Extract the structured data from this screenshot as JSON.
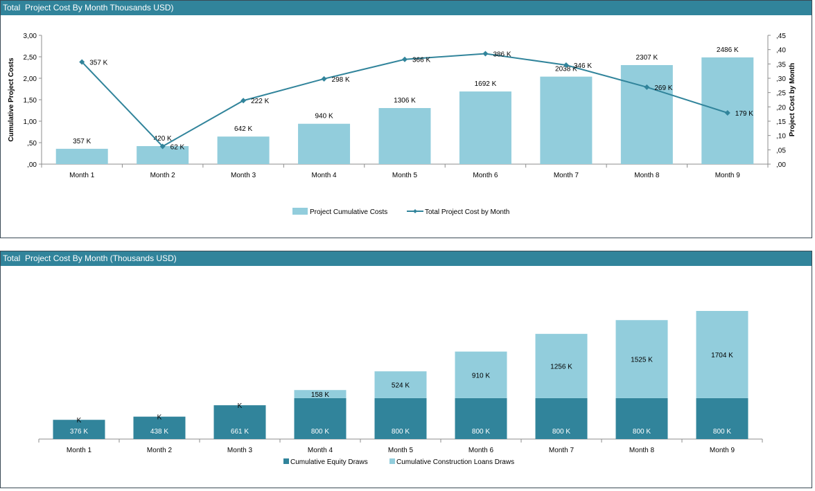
{
  "charts": {
    "top": {
      "header_title": "Total  Project Cost By Month Thousands USD)"
    },
    "bottom": {
      "header_title": "Total  Project Cost By Month (Thousands USD)"
    }
  },
  "colors": {
    "header": "#31849b",
    "cumulative_bar": "#92cddc",
    "line": "#31849b",
    "equity": "#31849b",
    "loans": "#92cddc"
  },
  "chart_data": [
    {
      "type": "bar",
      "categories": [
        "Month 1",
        "Month 2",
        "Month 3",
        "Month 4",
        "Month 5",
        "Month 6",
        "Month 7",
        "Month 8",
        "Month 9"
      ],
      "series": [
        {
          "name": "Project Cumulative Costs",
          "type": "bar",
          "axis": "left",
          "values": [
            357,
            420,
            642,
            940,
            1306,
            1692,
            2038,
            2307,
            2486
          ],
          "labels": [
            "357 K",
            "420 K",
            "642 K",
            "940 K",
            "1306 K",
            "1692 K",
            "2038 K",
            "2307 K",
            "2486 K"
          ]
        },
        {
          "name": "Total Project Cost by Month",
          "type": "line",
          "axis": "right",
          "values": [
            357,
            62,
            222,
            298,
            366,
            386,
            346,
            269,
            179
          ],
          "labels": [
            "357 K",
            "62 K",
            "222 K",
            "298 K",
            "366 K",
            "386 K",
            "346 K",
            "269 K",
            "179 K"
          ]
        }
      ],
      "ylabel": "Cumulative Project Costs",
      "y2label": "Project Cost by Month",
      "ylim": [
        0,
        3000
      ],
      "y2lim": [
        0,
        450
      ],
      "yticks": [
        ",00",
        ",50",
        "1,00",
        "1,50",
        "2,00",
        "2,50",
        "3,00"
      ],
      "y2ticks": [
        ",00",
        ",05",
        ",10",
        ",15",
        ",20",
        ",25",
        ",30",
        ",35",
        ",40",
        ",45"
      ],
      "legend": "bottom"
    },
    {
      "type": "bar",
      "stacked": true,
      "categories": [
        "Month 1",
        "Month 2",
        "Month 3",
        "Month 4",
        "Month 5",
        "Month 6",
        "Month 7",
        "Month 8",
        "Month 9"
      ],
      "series": [
        {
          "name": "Cumulative Equity Draws",
          "values": [
            376,
            438,
            661,
            800,
            800,
            800,
            800,
            800,
            800
          ],
          "labels": [
            "376 K",
            "438 K",
            "661 K",
            "800 K",
            "800 K",
            "800 K",
            "800 K",
            "800 K",
            "800 K"
          ]
        },
        {
          "name": "Cumulative Construction Loans Draws",
          "values": [
            0,
            0,
            0,
            158,
            524,
            910,
            1256,
            1525,
            1704
          ],
          "labels": [
            "K",
            "K",
            "K",
            "158 K",
            "524 K",
            "910 K",
            "1256 K",
            "1525 K",
            "1704 K"
          ]
        }
      ],
      "ylim": [
        0,
        2504
      ],
      "legend": "bottom"
    }
  ]
}
